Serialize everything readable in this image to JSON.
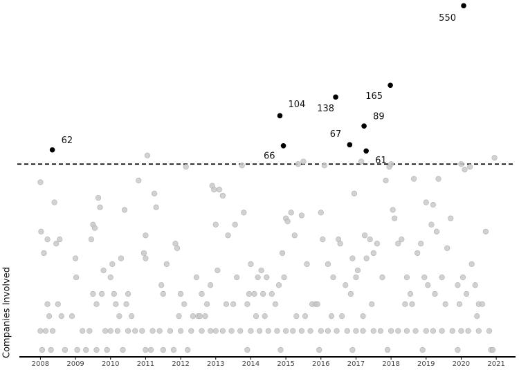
{
  "chart_data": {
    "type": "scatter",
    "y_label": "Companies Involved",
    "xlim": [
      2007.4,
      2021.55
    ],
    "xticks": [
      2008,
      2009,
      2010,
      2011,
      2012,
      2013,
      2014,
      2015,
      2016,
      2017,
      2018,
      2019,
      2020,
      2021
    ],
    "ylim": [
      2.7,
      600
    ],
    "yscale": "log",
    "reference_line": 50,
    "series": [
      {
        "color": "#c9c9c9",
        "x": [
          2008.0,
          2008.02,
          2008.1,
          2008.2,
          2008.4,
          2008.45,
          2008.55,
          2008.2,
          2008.25,
          2008.5,
          2008.0,
          2008.15,
          2008.35,
          2008.6,
          2008.05,
          2008.3,
          2008.7,
          2008.9,
          2009.0,
          2009.02,
          2009.45,
          2009.5,
          2009.55,
          2009.65,
          2009.7,
          2009.5,
          2009.6,
          2009.75,
          2009.8,
          2009.2,
          2009.4,
          2009.85,
          2009.3,
          2009.6,
          2009.9,
          2009.05,
          2010.0,
          2010.05,
          2010.15,
          2010.3,
          2010.4,
          2010.5,
          2010.6,
          2010.8,
          2010.95,
          2010.1,
          2010.25,
          2010.45,
          2010.0,
          2010.2,
          2010.5,
          2010.7,
          2010.9,
          2010.35,
          2011.0,
          2011.05,
          2011.25,
          2011.3,
          2011.45,
          2011.0,
          2011.5,
          2011.6,
          2011.85,
          2011.9,
          2011.2,
          2011.4,
          2011.7,
          2011.0,
          2011.15,
          2011.5,
          2011.8,
          2011.95,
          2012.0,
          2012.1,
          2012.15,
          2012.45,
          2012.5,
          2012.6,
          2012.75,
          2012.85,
          2012.9,
          2012.95,
          2012.35,
          2012.55,
          2012.7,
          2012.0,
          2012.3,
          2012.6,
          2012.85,
          2012.2,
          2013.0,
          2013.05,
          2013.1,
          2013.2,
          2013.35,
          2013.55,
          2013.6,
          2013.75,
          2013.8,
          2013.9,
          2013.95,
          2013.3,
          2013.5,
          2013.0,
          2013.2,
          2013.45,
          2013.7,
          2013.9,
          2014.0,
          2014.1,
          2014.2,
          2014.3,
          2014.35,
          2014.45,
          2014.6,
          2014.7,
          2014.8,
          2014.9,
          2014.95,
          2014.15,
          2014.4,
          2014.0,
          2014.25,
          2014.5,
          2014.75,
          2014.85,
          2015.0,
          2015.05,
          2015.15,
          2015.25,
          2015.35,
          2015.45,
          2015.5,
          2015.6,
          2015.75,
          2015.85,
          2015.9,
          2015.3,
          2015.55,
          2015.0,
          2015.2,
          2015.45,
          2015.7,
          2015.95,
          2016.0,
          2016.05,
          2016.1,
          2016.2,
          2016.35,
          2016.5,
          2016.55,
          2016.7,
          2016.85,
          2016.9,
          2016.95,
          2016.3,
          2016.6,
          2016.0,
          2016.2,
          2016.45,
          2016.75,
          2016.9,
          2017.0,
          2017.05,
          2017.15,
          2017.25,
          2017.3,
          2017.4,
          2017.5,
          2017.6,
          2017.75,
          2017.85,
          2017.95,
          2017.2,
          2017.45,
          2017.0,
          2017.2,
          2017.5,
          2017.7,
          2017.9,
          2018.0,
          2018.1,
          2018.2,
          2018.3,
          2018.45,
          2018.55,
          2018.65,
          2018.75,
          2018.85,
          2018.95,
          2018.05,
          2018.4,
          2018.6,
          2018.0,
          2018.2,
          2018.45,
          2018.7,
          2018.9,
          2019.0,
          2019.05,
          2019.15,
          2019.2,
          2019.3,
          2019.35,
          2019.45,
          2019.6,
          2019.7,
          2019.9,
          2019.95,
          2019.25,
          2019.55,
          2019.0,
          2019.2,
          2019.45,
          2019.75,
          2019.9,
          2020.0,
          2020.05,
          2020.1,
          2020.25,
          2020.3,
          2020.45,
          2020.5,
          2020.7,
          2020.95,
          2020.15,
          2020.4,
          2020.6,
          2020.0,
          2020.2,
          2020.5,
          2020.8,
          2020.85,
          2020.9
        ],
        "values": [
          38,
          18,
          13,
          16,
          28,
          15,
          16,
          6,
          5,
          6,
          4,
          4,
          4,
          5,
          3,
          3,
          3,
          5,
          12,
          9,
          16,
          20,
          19,
          30,
          26,
          7,
          6,
          7,
          10,
          4,
          4,
          4,
          3,
          3,
          3,
          3,
          9,
          11,
          6,
          12,
          25,
          7,
          5,
          39,
          13,
          7,
          5,
          6,
          4,
          4,
          4,
          4,
          4,
          3,
          17,
          57,
          32,
          26,
          8,
          12,
          7,
          11,
          15,
          14,
          4,
          4,
          4,
          3,
          3,
          3,
          3,
          5,
          7,
          6,
          48,
          9,
          5,
          7,
          6,
          8,
          36,
          34,
          5,
          5,
          5,
          4,
          4,
          4,
          4,
          3,
          20,
          10,
          34,
          31,
          17,
          20,
          9,
          49,
          24,
          6,
          7,
          6,
          6,
          4,
          4,
          4,
          4,
          3,
          11,
          7,
          9,
          10,
          7,
          9,
          7,
          6,
          8,
          13,
          9,
          5,
          5,
          4,
          4,
          4,
          4,
          3,
          22,
          21,
          24,
          17,
          50,
          23,
          52,
          11,
          6,
          6,
          6,
          5,
          5,
          4,
          4,
          4,
          4,
          3,
          24,
          16,
          49,
          11,
          9,
          16,
          15,
          8,
          7,
          12,
          32,
          5,
          5,
          4,
          4,
          4,
          4,
          3,
          9,
          10,
          52,
          17,
          12,
          16,
          13,
          15,
          9,
          39,
          48,
          5,
          6,
          4,
          4,
          4,
          4,
          3,
          50,
          22,
          15,
          16,
          9,
          7,
          40,
          13,
          15,
          9,
          25,
          6,
          6,
          4,
          4,
          4,
          4,
          3,
          28,
          8,
          20,
          27,
          18,
          40,
          9,
          14,
          22,
          8,
          6,
          7,
          6,
          4,
          4,
          4,
          4,
          3,
          50,
          9,
          46,
          48,
          11,
          5,
          6,
          18,
          55,
          7,
          8,
          6,
          4,
          4,
          4,
          4,
          3,
          3
        ]
      },
      {
        "color": "#000000",
        "x": [
          2008.34,
          2014.83,
          2014.93,
          2016.42,
          2016.82,
          2017.23,
          2017.29,
          2017.98,
          2020.07
        ],
        "values": [
          62,
          104,
          66,
          138,
          67,
          89,
          61,
          165,
          550
        ]
      }
    ]
  }
}
